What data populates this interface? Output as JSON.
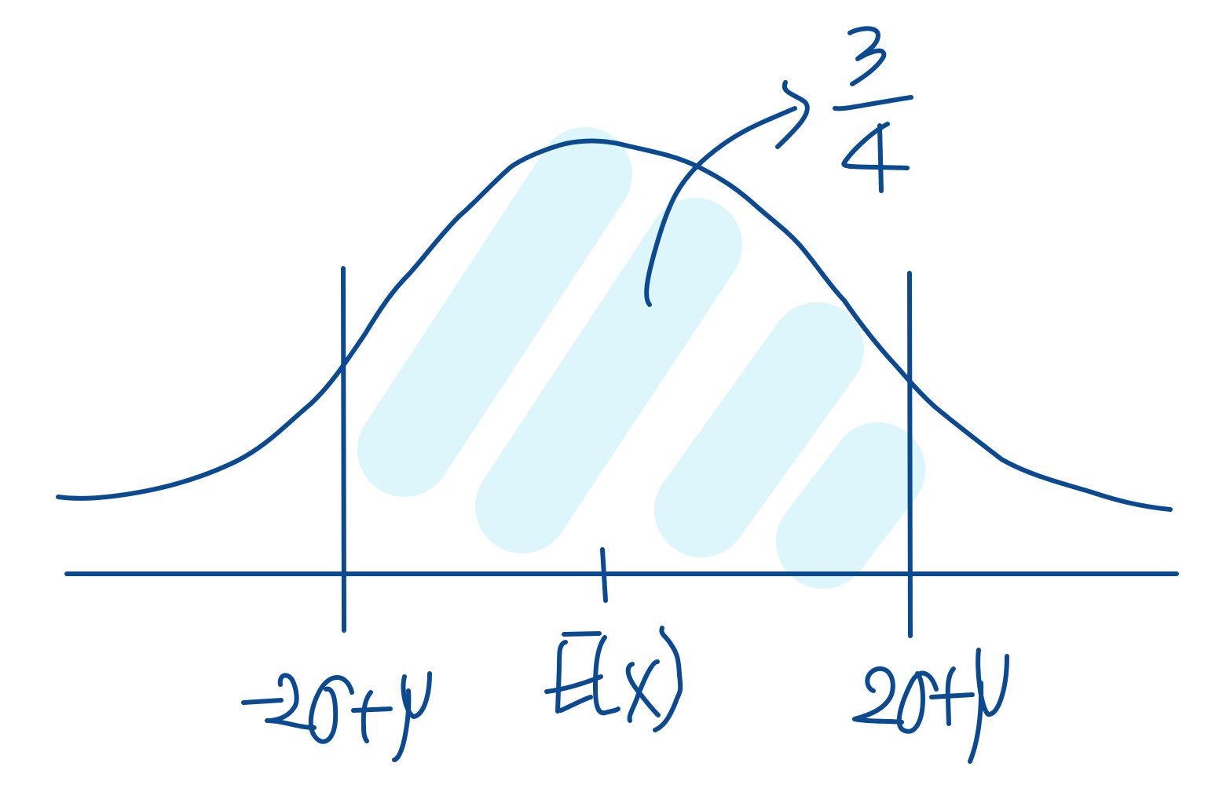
{
  "diagram": {
    "labels": {
      "left_bound": "-2σ+μ",
      "center": "E(X)",
      "right_bound": "2σ+μ",
      "area_annotation": "> 3/4"
    },
    "colors": {
      "ink": "#0b4a91",
      "highlight": "#d8f5fb"
    }
  }
}
